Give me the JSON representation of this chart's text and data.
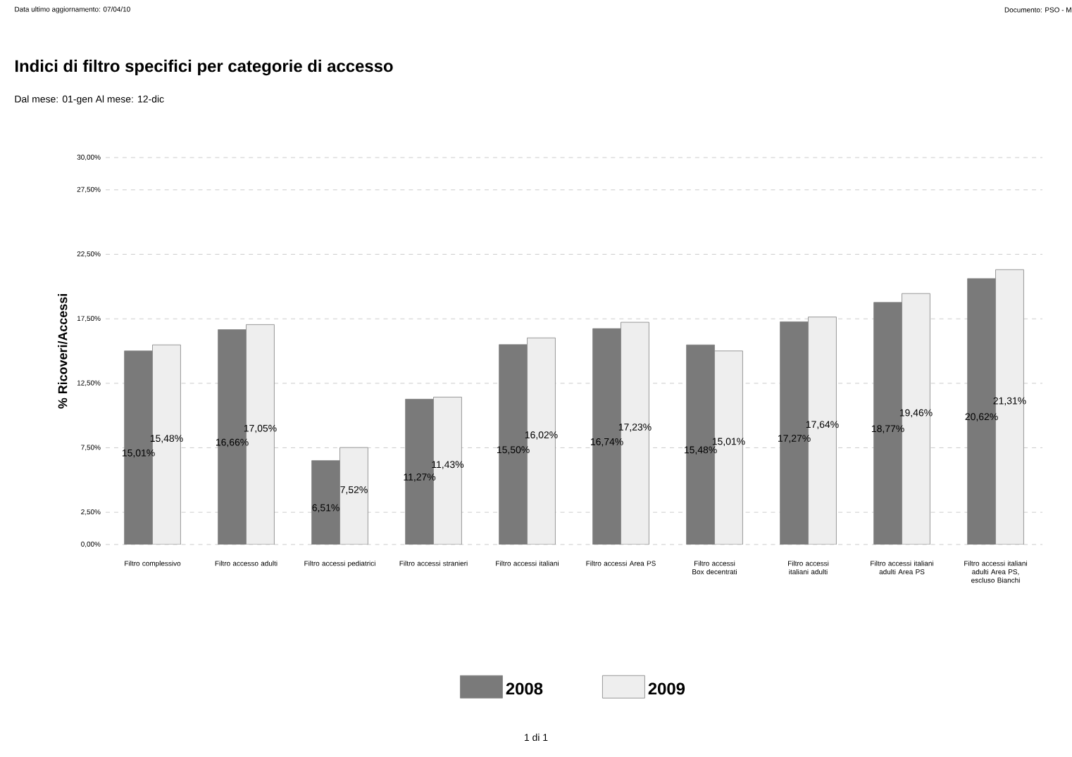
{
  "chart_data": {
    "type": "bar",
    "title": "Indici di filtro specifici per categorie di accesso",
    "subtitle": "Dal mese: 01-gen Al mese: 12-dic",
    "ylabel": "% Ricoveri/Accessi",
    "annotations": [
      "Data ultimo aggiornamento: 07/04/10",
      "Documento: PSO - M",
      "1 di 1"
    ],
    "categories": [
      "Filtro complessivo",
      "Filtro accesso adulti",
      "Filtro accessi pediatrici",
      "Filtro accessi stranieri",
      "Filtro accessi italiani",
      "Filtro accessi Area PS",
      "Filtro accessi Box decentrati",
      "Filtro accessi italiani adulti",
      "Filtro accessi italiani adulti Area PS",
      "Filtro accessi italiani adulti Area PS, escluso Bianchi"
    ],
    "series": [
      {
        "name": "2008",
        "color": "#7a7a7a",
        "values": [
          15.01,
          16.66,
          6.51,
          11.27,
          15.5,
          16.74,
          15.48,
          17.27,
          18.77,
          20.62
        ],
        "value_labels": [
          "15,01%",
          "16,66%",
          "6,51%",
          "11,27%",
          "15,50%",
          "16,74%",
          "15,48%",
          "17,27%",
          "18,77%",
          "20,62%"
        ]
      },
      {
        "name": "2009",
        "color": "#eeeeee",
        "values": [
          15.48,
          17.05,
          7.52,
          11.43,
          16.02,
          17.23,
          15.01,
          17.64,
          19.46,
          21.31
        ],
        "value_labels": [
          "15,48%",
          "17,05%",
          "7,52%",
          "11,43%",
          "16,02%",
          "17,23%",
          "15,01%",
          "17,64%",
          "19,46%",
          "21,31%"
        ]
      }
    ],
    "ylim": [
      0,
      30
    ],
    "yticks": [
      {
        "value": 0,
        "label": "0,00%"
      },
      {
        "value": 2.5,
        "label": "2,50%"
      },
      {
        "value": 7.5,
        "label": "7,50%"
      },
      {
        "value": 12.5,
        "label": "12,50%"
      },
      {
        "value": 17.5,
        "label": "17,50%"
      },
      {
        "value": 22.5,
        "label": "22,50%"
      },
      {
        "value": 27.5,
        "label": "27,50%"
      },
      {
        "value": 30,
        "label": "30,00%"
      }
    ],
    "grid": "y",
    "legend": "bottom"
  }
}
